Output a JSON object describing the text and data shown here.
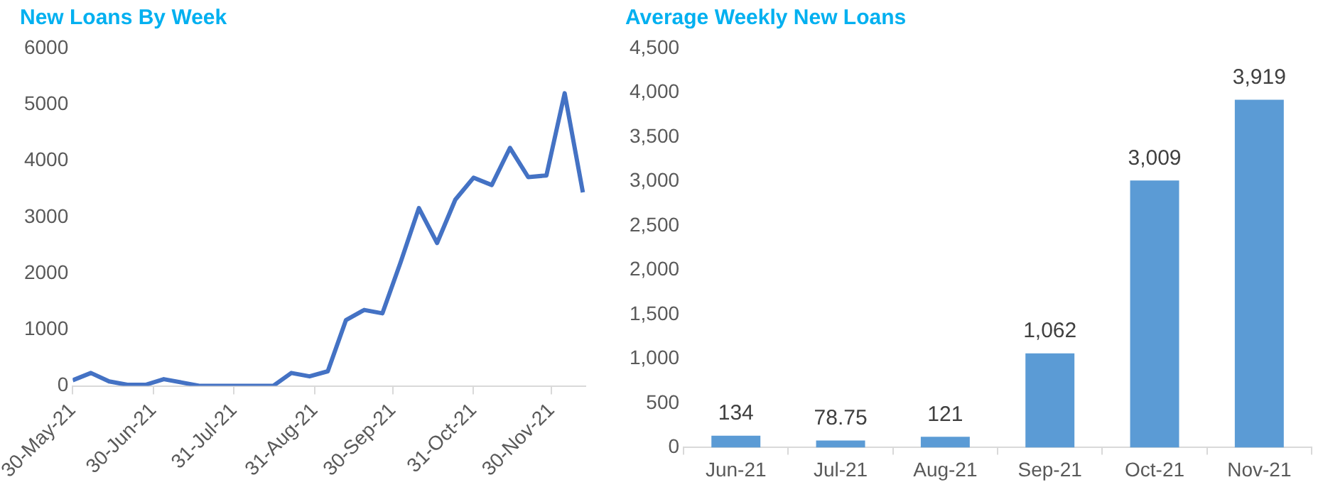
{
  "chart_data": [
    {
      "type": "line",
      "title": "New Loans By Week",
      "x": [
        "2021-05-30",
        "2021-06-06",
        "2021-06-13",
        "2021-06-20",
        "2021-06-27",
        "2021-07-04",
        "2021-07-11",
        "2021-07-18",
        "2021-07-25",
        "2021-08-01",
        "2021-08-08",
        "2021-08-15",
        "2021-08-22",
        "2021-08-29",
        "2021-09-05",
        "2021-09-12",
        "2021-09-19",
        "2021-09-26",
        "2021-10-03",
        "2021-10-10",
        "2021-10-17",
        "2021-10-24",
        "2021-10-31",
        "2021-11-07",
        "2021-11-14",
        "2021-11-21",
        "2021-11-28",
        "2021-12-05",
        "2021-12-12"
      ],
      "series": [
        {
          "color": "#4472c4",
          "values": [
            100,
            230,
            80,
            20,
            20,
            120,
            60,
            0,
            0,
            0,
            0,
            0,
            230,
            170,
            260,
            1170,
            1350,
            1290,
            2200,
            3160,
            2540,
            3310,
            3700,
            3570,
            4230,
            3710,
            3740,
            5200,
            3440
          ]
        }
      ],
      "xlim": [
        "2021-05-30",
        "2021-12-13"
      ],
      "xticks": [
        {
          "value": "2021-05-30",
          "label": "30-May-21"
        },
        {
          "value": "2021-06-30",
          "label": "30-Jun-21"
        },
        {
          "value": "2021-07-31",
          "label": "31-Jul-21"
        },
        {
          "value": "2021-08-31",
          "label": "31-Aug-21"
        },
        {
          "value": "2021-09-30",
          "label": "30-Sep-21"
        },
        {
          "value": "2021-10-31",
          "label": "31-Oct-21"
        },
        {
          "value": "2021-11-30",
          "label": "30-Nov-21"
        }
      ],
      "ylim": [
        0,
        6000
      ],
      "yticks": [
        0,
        1000,
        2000,
        3000,
        4000,
        5000,
        6000
      ],
      "grid": false,
      "legend": false,
      "marker": "none",
      "line_style": "solid"
    },
    {
      "type": "bar",
      "title": "Average Weekly New Loans",
      "categories": [
        "Jun-21",
        "Jul-21",
        "Aug-21",
        "Sep-21",
        "Oct-21",
        "Nov-21"
      ],
      "series": [
        {
          "color": "#5b9bd5",
          "values": [
            134,
            78.75,
            121,
            1062,
            3009,
            3919
          ]
        }
      ],
      "value_labels": [
        "134",
        "78.75",
        "121",
        "1,062",
        "3,009",
        "3,919"
      ],
      "ylim": [
        0,
        4500
      ],
      "yticks": [
        {
          "value": 0,
          "label": "0"
        },
        {
          "value": 500,
          "label": "500"
        },
        {
          "value": 1000,
          "label": "1,000"
        },
        {
          "value": 1500,
          "label": "1,500"
        },
        {
          "value": 2000,
          "label": "2,000"
        },
        {
          "value": 2500,
          "label": "2,500"
        },
        {
          "value": 3000,
          "label": "3,000"
        },
        {
          "value": 3500,
          "label": "3,500"
        },
        {
          "value": 4000,
          "label": "4,000"
        },
        {
          "value": 4500,
          "label": "4,500"
        }
      ],
      "grid": false,
      "legend": false
    }
  ]
}
